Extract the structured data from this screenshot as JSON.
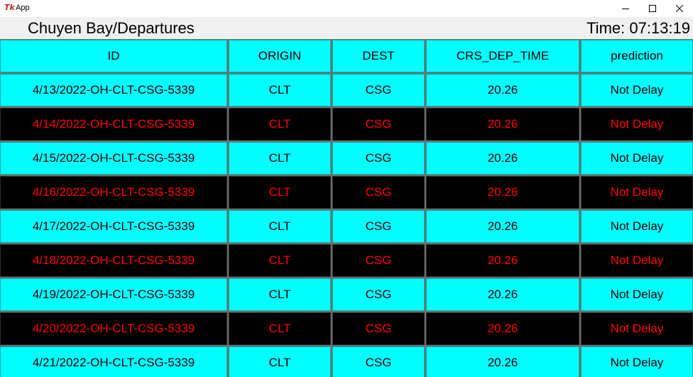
{
  "window": {
    "app_icon": "Tk",
    "title": "App",
    "minimize_icon": "minimize-icon",
    "maximize_icon": "maximize-icon",
    "close_icon": "close-icon"
  },
  "header": {
    "title": "Chuyen Bay/Departures",
    "clock": "Time: 07:13:19"
  },
  "colors": {
    "even_row_bg": "#00ffff",
    "even_row_text": "#000000",
    "odd_row_bg": "#000000",
    "odd_row_text": "#ff0000",
    "gridline": "#6e6e6e"
  },
  "table": {
    "columns": [
      "ID",
      "ORIGIN",
      "DEST",
      "CRS_DEP_TIME",
      "prediction"
    ],
    "rows": [
      [
        "4/13/2022-OH-CLT-CSG-5339",
        "CLT",
        "CSG",
        "20.26",
        "Not Delay"
      ],
      [
        "4/14/2022-OH-CLT-CSG-5339",
        "CLT",
        "CSG",
        "20.26",
        "Not Delay"
      ],
      [
        "4/15/2022-OH-CLT-CSG-5339",
        "CLT",
        "CSG",
        "20.26",
        "Not Delay"
      ],
      [
        "4/16/2022-OH-CLT-CSG-5339",
        "CLT",
        "CSG",
        "20.26",
        "Not Delay"
      ],
      [
        "4/17/2022-OH-CLT-CSG-5339",
        "CLT",
        "CSG",
        "20.26",
        "Not Delay"
      ],
      [
        "4/18/2022-OH-CLT-CSG-5339",
        "CLT",
        "CSG",
        "20.26",
        "Not Delay"
      ],
      [
        "4/19/2022-OH-CLT-CSG-5339",
        "CLT",
        "CSG",
        "20.26",
        "Not Delay"
      ],
      [
        "4/20/2022-OH-CLT-CSG-5339",
        "CLT",
        "CSG",
        "20.26",
        "Not Delay"
      ],
      [
        "4/21/2022-OH-CLT-CSG-5339",
        "CLT",
        "CSG",
        "20.26",
        "Not Delay"
      ]
    ]
  }
}
